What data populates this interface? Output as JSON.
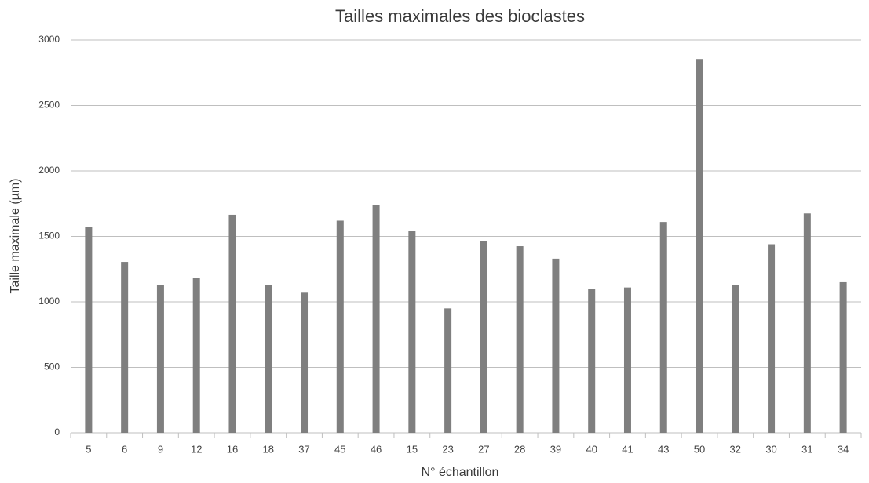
{
  "chart_data": {
    "type": "bar",
    "title": "Tailles maximales des bioclastes",
    "xlabel": "N° échantillon",
    "ylabel": "Taille maximale (µm)",
    "categories": [
      "5",
      "6",
      "9",
      "12",
      "16",
      "18",
      "37",
      "45",
      "46",
      "15",
      "23",
      "27",
      "28",
      "39",
      "40",
      "41",
      "43",
      "50",
      "32",
      "30",
      "31",
      "34"
    ],
    "values": [
      1570,
      1305,
      1130,
      1180,
      1665,
      1130,
      1070,
      1620,
      1740,
      1540,
      950,
      1465,
      1425,
      1330,
      1100,
      1110,
      1610,
      2855,
      1130,
      1440,
      1675,
      1150
    ],
    "color": "#7f7f7f",
    "ylim": [
      0,
      3000
    ],
    "yticks": [
      0,
      500,
      1000,
      1500,
      2000,
      2500,
      3000
    ],
    "grid": true
  }
}
